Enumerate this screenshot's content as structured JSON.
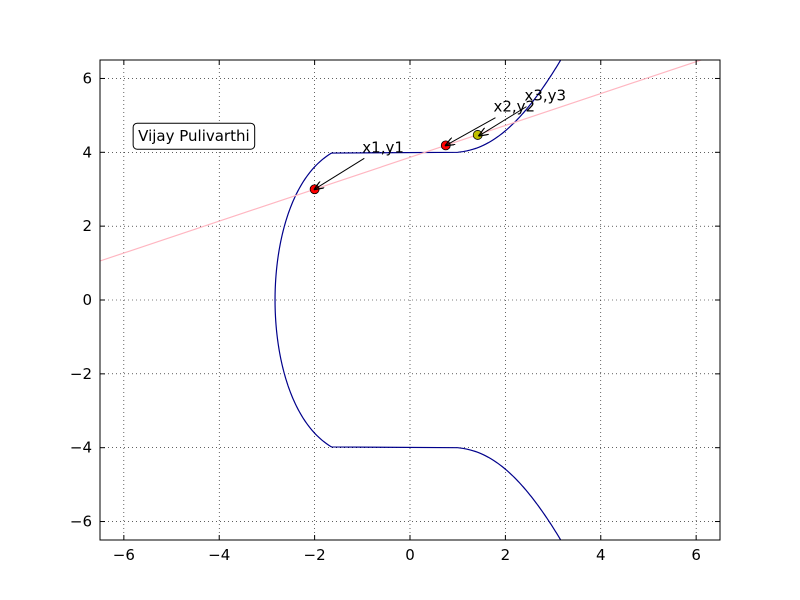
{
  "chart_data": {
    "type": "line",
    "title": "",
    "xlabel": "",
    "ylabel": "",
    "xlim": [
      -6.5,
      6.5
    ],
    "ylim": [
      -6.5,
      6.5
    ],
    "xticks": [
      -6,
      -4,
      -2,
      0,
      2,
      4,
      6
    ],
    "yticks": [
      -6,
      -4,
      -2,
      0,
      2,
      4,
      6
    ],
    "xtick_labels": [
      "−6",
      "−4",
      "−2",
      "0",
      "2",
      "4",
      "6"
    ],
    "ytick_labels": [
      "−6",
      "−4",
      "−2",
      "0",
      "2",
      "4",
      "6"
    ],
    "grid": true,
    "series": [
      {
        "kind": "curve",
        "equation": "y^2 = x^3 - 2x + 17",
        "a": -2,
        "b": 17,
        "color": "#00008b"
      },
      {
        "kind": "line",
        "through": [
          [
            -2,
            3
          ],
          [
            0.75,
            4.1875
          ]
        ],
        "color": "#ffb6c1"
      }
    ],
    "points": [
      {
        "x": -2,
        "y": 3,
        "color": "#ff0000"
      },
      {
        "x": 0.75,
        "y": 4.1875,
        "color": "#ff0000"
      },
      {
        "x": 1.42,
        "y": 4.47,
        "color": "#bfbf00"
      }
    ],
    "annotations": [
      {
        "text": "x1,y1",
        "xy": [
          -2,
          3
        ],
        "xytext": [
          -1.0,
          4.0
        ]
      },
      {
        "text": "x2,y2",
        "xy": [
          0.75,
          4.1875
        ],
        "xytext": [
          1.75,
          5.1
        ]
      },
      {
        "text": "x3,y3",
        "xy": [
          1.45,
          4.45
        ],
        "xytext": [
          2.4,
          5.4
        ]
      }
    ],
    "textbox": {
      "text": "Vijay Pulivarthi",
      "x": -5.7,
      "y": 4.3
    }
  }
}
